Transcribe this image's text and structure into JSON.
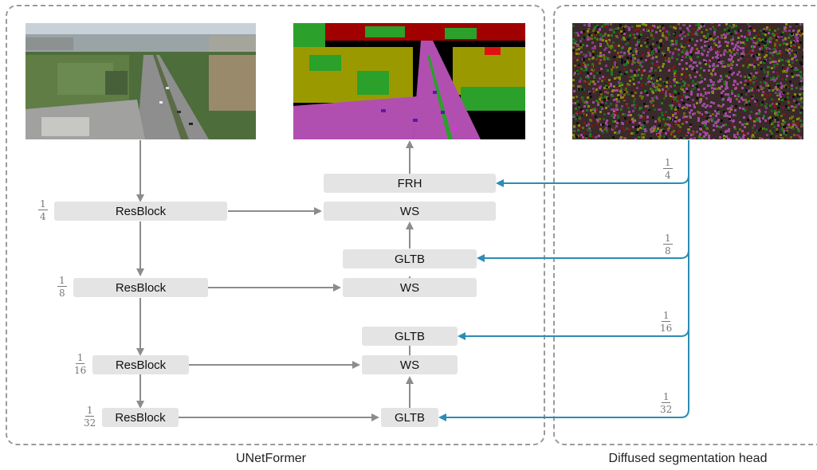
{
  "panels": {
    "left_caption": "UNetFormer",
    "right_caption": "Diffused segmentation head"
  },
  "encoder": {
    "blocks": [
      "ResBlock",
      "ResBlock",
      "ResBlock",
      "ResBlock"
    ],
    "scales": [
      {
        "num": "1",
        "den": "4"
      },
      {
        "num": "1",
        "den": "8"
      },
      {
        "num": "1",
        "den": "16"
      },
      {
        "num": "1",
        "den": "32"
      }
    ]
  },
  "decoder": {
    "frh": "FRH",
    "ws": [
      "WS",
      "WS",
      "WS"
    ],
    "gltb": [
      "GLTB",
      "GLTB",
      "GLTB"
    ]
  },
  "head_scales": [
    {
      "num": "1",
      "den": "4"
    },
    {
      "num": "1",
      "den": "8"
    },
    {
      "num": "1",
      "den": "16"
    },
    {
      "num": "1",
      "den": "32"
    }
  ],
  "images": {
    "input": "aerial-road-photo",
    "segmentation": "segmentation-map",
    "noisy": "diffused-noise-map"
  },
  "colors": {
    "gray_arrow": "#8c8c8c",
    "blue_arrow": "#2a8db5",
    "box_fill": "#e4e4e4"
  }
}
